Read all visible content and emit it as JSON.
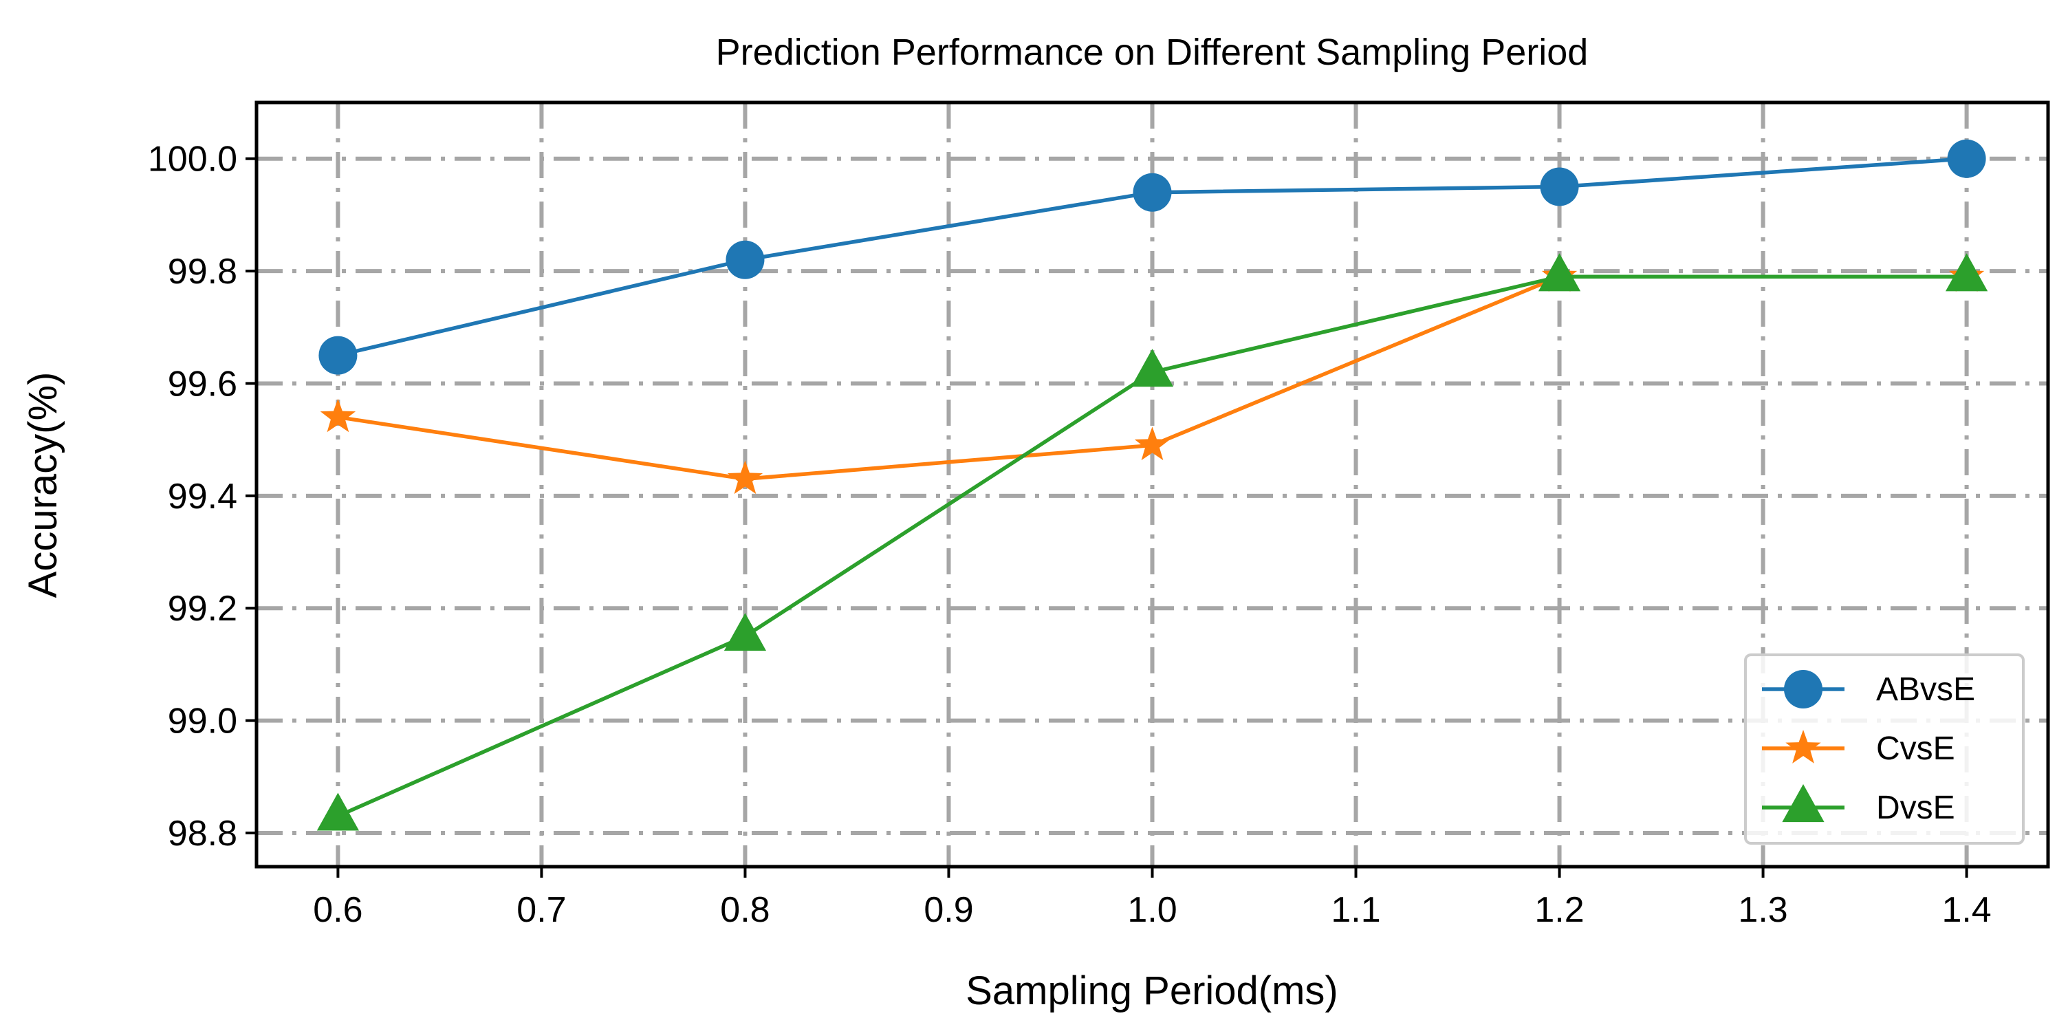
{
  "chart_data": {
    "type": "line",
    "title": "Prediction Performance on Different Sampling Period",
    "xlabel": "Sampling Period(ms)",
    "ylabel": "Accuracy(%)",
    "x": [
      0.6,
      0.8,
      1.0,
      1.2,
      1.4
    ],
    "xlim": [
      0.56,
      1.44
    ],
    "ylim": [
      98.74,
      100.1
    ],
    "xticks": [
      0.6,
      0.7,
      0.8,
      0.9,
      1.0,
      1.1,
      1.2,
      1.3,
      1.4
    ],
    "xtick_labels": [
      "0.6",
      "0.7",
      "0.8",
      "0.9",
      "1.0",
      "1.1",
      "1.2",
      "1.3",
      "1.4"
    ],
    "yticks": [
      98.8,
      99.0,
      99.2,
      99.4,
      99.6,
      99.8,
      100.0
    ],
    "ytick_labels": [
      "98.8",
      "99.0",
      "99.2",
      "99.4",
      "99.6",
      "99.8",
      "100.0"
    ],
    "grid": true,
    "legend_position": "lower-right",
    "series": [
      {
        "name": "ABvsE",
        "color": "#1f77b4",
        "marker": "circle",
        "values": [
          99.65,
          99.82,
          99.94,
          99.95,
          100.0
        ]
      },
      {
        "name": "CvsE",
        "color": "#ff7f0e",
        "marker": "star",
        "values": [
          99.54,
          99.43,
          99.49,
          99.79,
          99.79
        ]
      },
      {
        "name": "DvsE",
        "color": "#2ca02c",
        "marker": "triangle",
        "values": [
          98.83,
          99.15,
          99.62,
          99.79,
          99.79
        ]
      }
    ]
  }
}
